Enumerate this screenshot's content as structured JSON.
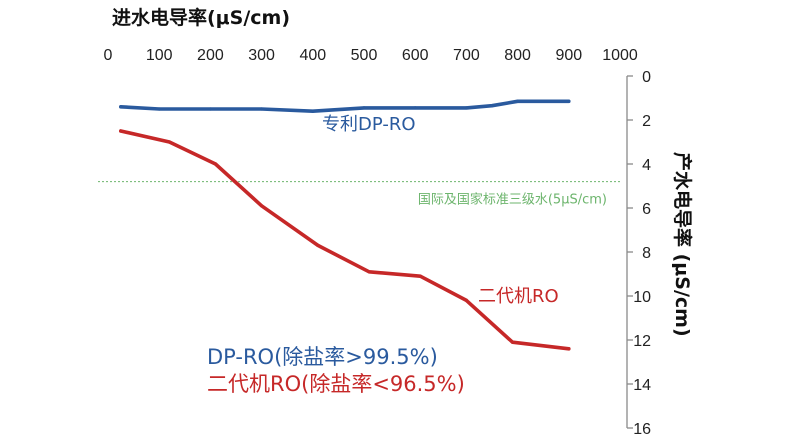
{
  "chart_data": {
    "type": "line",
    "xlabel": "进水电导率(μS/cm)",
    "ylabel": "产水电导率 (μS/cm)",
    "xlim": [
      0,
      1000
    ],
    "ylim": [
      0,
      16
    ],
    "y_inverted": true,
    "x_ticks": [
      0,
      100,
      200,
      300,
      400,
      500,
      600,
      700,
      800,
      900,
      1000
    ],
    "y_ticks": [
      0,
      2,
      4,
      6,
      8,
      10,
      12,
      14,
      16
    ],
    "x_axis_position": "top",
    "y_axis_position": "right",
    "series": [
      {
        "name": "专利DP-RO",
        "color": "#2a5a9e",
        "x": [
          25,
          100,
          200,
          300,
          400,
          500,
          600,
          700,
          750,
          800,
          900
        ],
        "y": [
          1.4,
          1.5,
          1.5,
          1.5,
          1.6,
          1.45,
          1.45,
          1.45,
          1.35,
          1.15,
          1.15
        ]
      },
      {
        "name": "二代机RO",
        "color": "#c62828",
        "x": [
          25,
          120,
          210,
          300,
          410,
          510,
          610,
          700,
          790,
          900
        ],
        "y": [
          2.5,
          3.0,
          4.0,
          5.9,
          7.7,
          8.9,
          9.1,
          10.2,
          12.1,
          12.4
        ]
      }
    ],
    "reference_line": {
      "label": "国际及国家标准三级水(5μS/cm)",
      "y": 4.8,
      "color": "#6db56d"
    },
    "legend": [
      {
        "text": "DP-RO(除盐率>99.5%)",
        "color": "#2a5a9e"
      },
      {
        "text": "二代机RO(除盐率<96.5%)",
        "color": "#c62828"
      }
    ]
  }
}
